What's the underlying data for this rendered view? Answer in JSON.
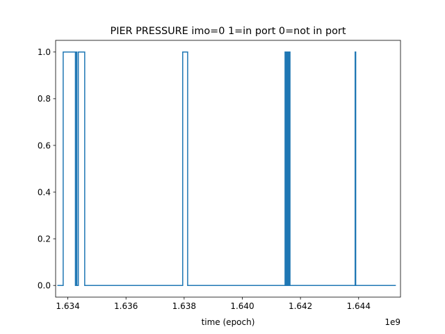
{
  "chart_data": {
    "type": "line",
    "title": "PIER PRESSURE imo=0 1=in port 0=not in port",
    "xlabel": "time (epoch)",
    "ylabel": "",
    "x_offset_label": "1e9",
    "xlim": [
      1633580000,
      1645440000
    ],
    "ylim": [
      -0.05,
      1.05
    ],
    "xticks": [
      {
        "value": 1634000000,
        "label": "1.634"
      },
      {
        "value": 1636000000,
        "label": "1.636"
      },
      {
        "value": 1638000000,
        "label": "1.638"
      },
      {
        "value": 1640000000,
        "label": "1.640"
      },
      {
        "value": 1642000000,
        "label": "1.642"
      },
      {
        "value": 1644000000,
        "label": "1.644"
      }
    ],
    "yticks": [
      {
        "value": 0.0,
        "label": "0.0"
      },
      {
        "value": 0.2,
        "label": "0.2"
      },
      {
        "value": 0.4,
        "label": "0.4"
      },
      {
        "value": 0.6,
        "label": "0.6"
      },
      {
        "value": 0.8,
        "label": "0.8"
      },
      {
        "value": 1.0,
        "label": "1.0"
      }
    ],
    "grid": false,
    "series": [
      {
        "color": "#1f77b4",
        "step": true,
        "x": [
          1633640000,
          1633840000,
          1634260000,
          1634290000,
          1634310000,
          1634360000,
          1634580000,
          1637950000,
          1638120000,
          1641470000,
          1641490000,
          1641520000,
          1641540000,
          1641570000,
          1641590000,
          1641620000,
          1641640000,
          1643880000,
          1643900000,
          1645280000
        ],
        "y": [
          0,
          1,
          0,
          1,
          0,
          1,
          0,
          1,
          0,
          1,
          0,
          1,
          0,
          1,
          0,
          1,
          0,
          1,
          0,
          0
        ]
      }
    ]
  }
}
